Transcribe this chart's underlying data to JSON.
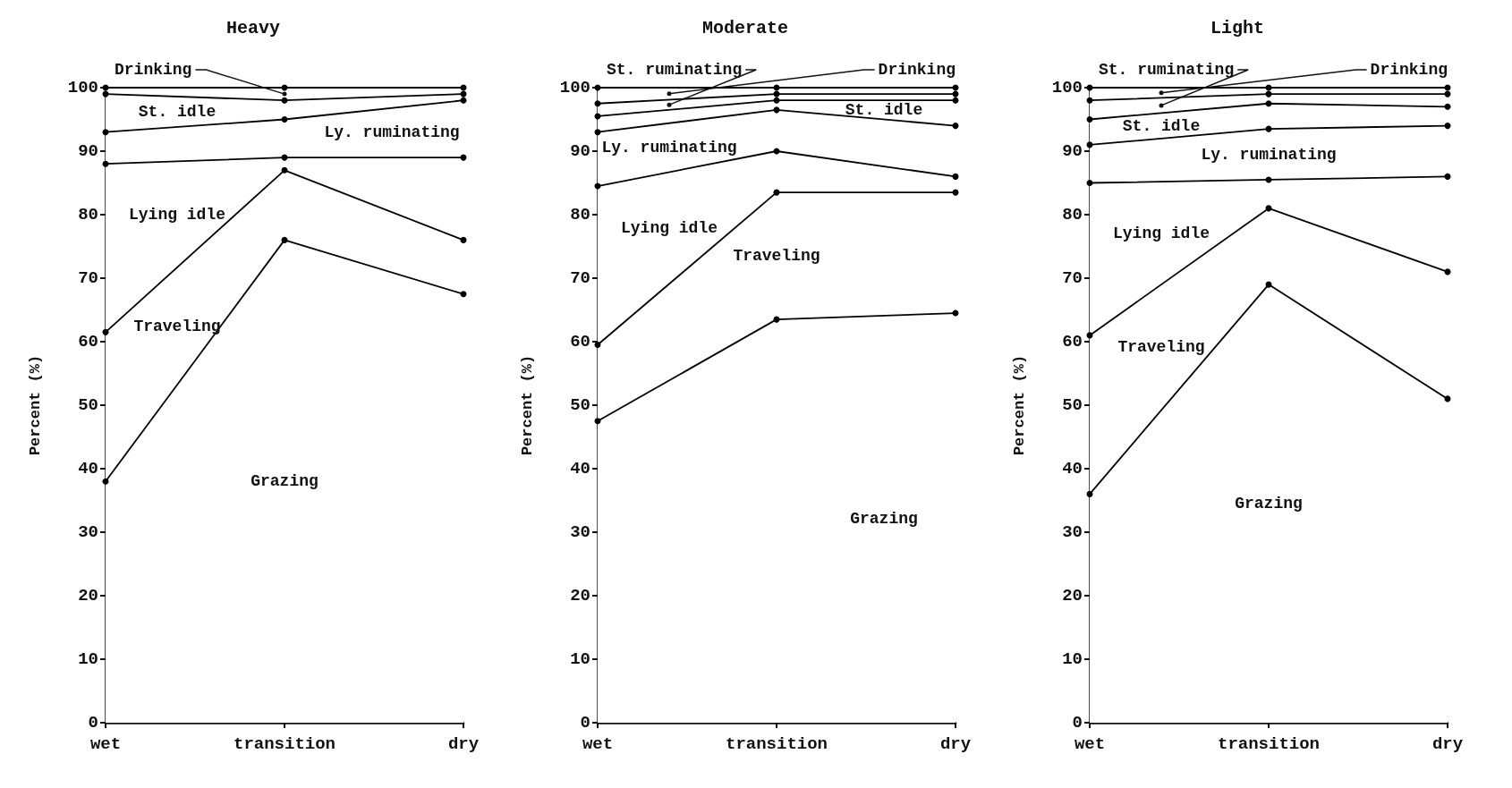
{
  "chart_data": [
    {
      "type": "area",
      "title": "Heavy",
      "ylabel": "Percent (%)",
      "categories": [
        "wet",
        "transition",
        "dry"
      ],
      "stacked": true,
      "ylim": [
        0,
        100
      ],
      "yticks": [
        0,
        10,
        20,
        30,
        40,
        50,
        60,
        70,
        80,
        90,
        100
      ],
      "grid": false,
      "legend": false,
      "marker": "circle",
      "line_style": "solid",
      "series": [
        {
          "name": "Grazing",
          "color": "#000000",
          "values": [
            38,
            76,
            67.5
          ]
        },
        {
          "name": "Traveling",
          "color": "#000000",
          "values": [
            23.5,
            11,
            8.5
          ]
        },
        {
          "name": "Lying idle",
          "color": "#000000",
          "values": [
            26.5,
            2,
            13
          ]
        },
        {
          "name": "Ly. ruminating",
          "color": "#000000",
          "values": [
            5,
            6,
            9
          ]
        },
        {
          "name": "St. idle",
          "color": "#000000",
          "values": [
            6,
            3,
            1
          ]
        },
        {
          "name": "Drinking",
          "color": "#000000",
          "values": [
            1,
            2,
            1
          ]
        }
      ]
    },
    {
      "type": "area",
      "title": "Moderate",
      "ylabel": "Percent (%)",
      "categories": [
        "wet",
        "transition",
        "dry"
      ],
      "stacked": true,
      "ylim": [
        0,
        100
      ],
      "yticks": [
        0,
        10,
        20,
        30,
        40,
        50,
        60,
        70,
        80,
        90,
        100
      ],
      "grid": false,
      "legend": false,
      "marker": "circle",
      "line_style": "solid",
      "series": [
        {
          "name": "Grazing",
          "color": "#000000",
          "values": [
            47.5,
            63.5,
            64.5
          ]
        },
        {
          "name": "Traveling",
          "color": "#000000",
          "values": [
            12,
            20,
            19
          ]
        },
        {
          "name": "Lying idle",
          "color": "#000000",
          "values": [
            25,
            6.5,
            2.5
          ]
        },
        {
          "name": "Ly. ruminating",
          "color": "#000000",
          "values": [
            8.5,
            6.5,
            8
          ]
        },
        {
          "name": "St. idle",
          "color": "#000000",
          "values": [
            2.5,
            1.5,
            4
          ]
        },
        {
          "name": "St. ruminating",
          "color": "#000000",
          "values": [
            2,
            1,
            1
          ]
        },
        {
          "name": "Drinking",
          "color": "#000000",
          "values": [
            2.5,
            1,
            1
          ]
        }
      ]
    },
    {
      "type": "area",
      "title": "Light",
      "ylabel": "Percent (%)",
      "categories": [
        "wet",
        "transition",
        "dry"
      ],
      "stacked": true,
      "ylim": [
        0,
        100
      ],
      "yticks": [
        0,
        10,
        20,
        30,
        40,
        50,
        60,
        70,
        80,
        90,
        100
      ],
      "grid": false,
      "legend": false,
      "marker": "circle",
      "line_style": "solid",
      "series": [
        {
          "name": "Grazing",
          "color": "#000000",
          "values": [
            36,
            69,
            51
          ]
        },
        {
          "name": "Traveling",
          "color": "#000000",
          "values": [
            25,
            12,
            20
          ]
        },
        {
          "name": "Lying idle",
          "color": "#000000",
          "values": [
            24,
            4.5,
            15
          ]
        },
        {
          "name": "Ly. ruminating",
          "color": "#000000",
          "values": [
            6,
            8,
            8
          ]
        },
        {
          "name": "St. idle",
          "color": "#000000",
          "values": [
            4,
            4,
            3
          ]
        },
        {
          "name": "St. ruminating",
          "color": "#000000",
          "values": [
            3,
            1.5,
            2
          ]
        },
        {
          "name": "Drinking",
          "color": "#000000",
          "values": [
            2,
            1,
            1
          ]
        }
      ]
    }
  ]
}
